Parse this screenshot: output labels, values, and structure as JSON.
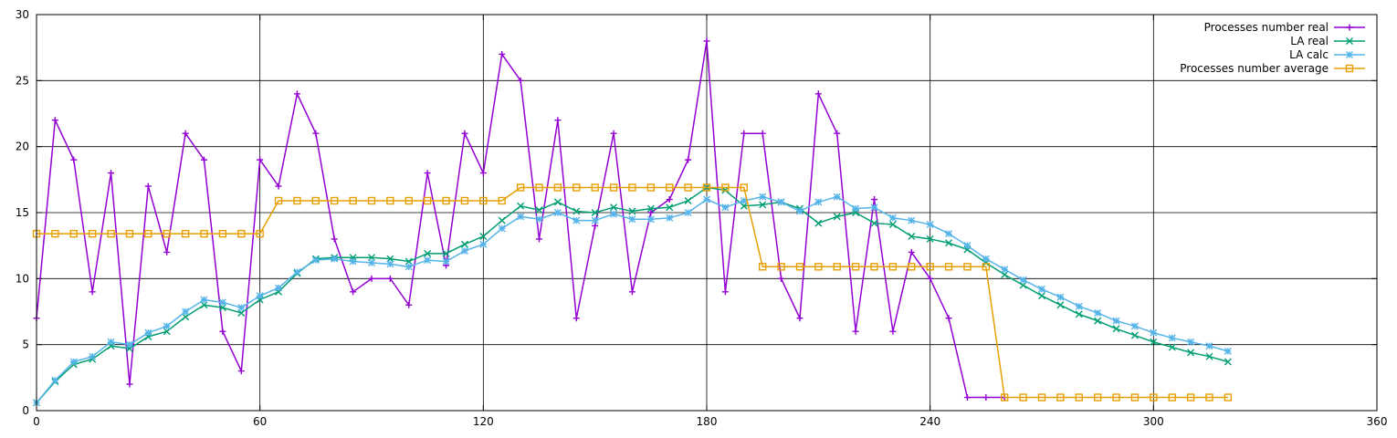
{
  "chart_data": {
    "type": "line",
    "title": "",
    "xlabel": "",
    "ylabel": "",
    "xlim": [
      0,
      360
    ],
    "ylim": [
      0,
      30
    ],
    "x_ticks": [
      0,
      60,
      120,
      180,
      240,
      300,
      360
    ],
    "y_ticks": [
      0,
      5,
      10,
      15,
      20,
      25,
      30
    ],
    "grid": true,
    "legend_position": "top-right",
    "series": [
      {
        "name": "Processes number real",
        "color": "#9400d3",
        "marker": "plus",
        "points": [
          [
            0,
            7
          ],
          [
            5,
            22
          ],
          [
            10,
            19
          ],
          [
            15,
            9
          ],
          [
            20,
            18
          ],
          [
            25,
            2
          ],
          [
            30,
            17
          ],
          [
            35,
            12
          ],
          [
            40,
            21
          ],
          [
            45,
            19
          ],
          [
            50,
            6
          ],
          [
            55,
            3
          ],
          [
            60,
            19
          ],
          [
            65,
            17
          ],
          [
            70,
            24
          ],
          [
            75,
            21
          ],
          [
            80,
            13
          ],
          [
            85,
            9
          ],
          [
            90,
            10
          ],
          [
            95,
            10
          ],
          [
            100,
            8
          ],
          [
            105,
            18
          ],
          [
            110,
            11
          ],
          [
            115,
            21
          ],
          [
            120,
            18
          ],
          [
            125,
            27
          ],
          [
            130,
            25
          ],
          [
            135,
            13
          ],
          [
            140,
            22
          ],
          [
            145,
            7
          ],
          [
            150,
            14
          ],
          [
            155,
            21
          ],
          [
            160,
            9
          ],
          [
            165,
            15
          ],
          [
            170,
            16
          ],
          [
            175,
            19
          ],
          [
            180,
            28
          ],
          [
            185,
            9
          ],
          [
            190,
            21
          ],
          [
            195,
            21
          ],
          [
            200,
            10
          ],
          [
            205,
            7
          ],
          [
            210,
            24
          ],
          [
            215,
            21
          ],
          [
            220,
            6
          ],
          [
            225,
            16
          ],
          [
            230,
            6
          ],
          [
            235,
            12
          ],
          [
            240,
            10
          ],
          [
            245,
            7
          ],
          [
            250,
            1
          ],
          [
            255,
            1
          ],
          [
            260,
            1
          ]
        ]
      },
      {
        "name": "LA real",
        "color": "#009e73",
        "marker": "cross",
        "points": [
          [
            0,
            0.6
          ],
          [
            5,
            2.2
          ],
          [
            10,
            3.5
          ],
          [
            15,
            3.9
          ],
          [
            20,
            4.9
          ],
          [
            25,
            4.7
          ],
          [
            30,
            5.6
          ],
          [
            35,
            6.0
          ],
          [
            40,
            7.1
          ],
          [
            45,
            8.0
          ],
          [
            50,
            7.8
          ],
          [
            55,
            7.4
          ],
          [
            60,
            8.4
          ],
          [
            65,
            9.0
          ],
          [
            70,
            10.4
          ],
          [
            75,
            11.5
          ],
          [
            80,
            11.6
          ],
          [
            85,
            11.6
          ],
          [
            90,
            11.6
          ],
          [
            95,
            11.5
          ],
          [
            100,
            11.3
          ],
          [
            105,
            11.9
          ],
          [
            110,
            11.9
          ],
          [
            115,
            12.6
          ],
          [
            120,
            13.2
          ],
          [
            125,
            14.4
          ],
          [
            130,
            15.5
          ],
          [
            135,
            15.2
          ],
          [
            140,
            15.8
          ],
          [
            145,
            15.1
          ],
          [
            150,
            15.0
          ],
          [
            155,
            15.4
          ],
          [
            160,
            15.1
          ],
          [
            165,
            15.3
          ],
          [
            170,
            15.4
          ],
          [
            175,
            15.9
          ],
          [
            180,
            16.9
          ],
          [
            185,
            16.7
          ],
          [
            190,
            15.5
          ],
          [
            195,
            15.6
          ],
          [
            200,
            15.8
          ],
          [
            205,
            15.3
          ],
          [
            210,
            14.2
          ],
          [
            215,
            14.7
          ],
          [
            220,
            15.0
          ],
          [
            225,
            14.2
          ],
          [
            230,
            14.1
          ],
          [
            235,
            13.2
          ],
          [
            240,
            13.0
          ],
          [
            245,
            12.7
          ],
          [
            250,
            12.2
          ],
          [
            255,
            11.2
          ],
          [
            260,
            10.3
          ],
          [
            265,
            9.5
          ],
          [
            270,
            8.7
          ],
          [
            275,
            8.0
          ],
          [
            280,
            7.3
          ],
          [
            285,
            6.8
          ],
          [
            290,
            6.2
          ],
          [
            295,
            5.7
          ],
          [
            300,
            5.2
          ],
          [
            305,
            4.8
          ],
          [
            310,
            4.4
          ],
          [
            315,
            4.1
          ],
          [
            320,
            3.7
          ]
        ]
      },
      {
        "name": "LA calc",
        "color": "#56b4e9",
        "marker": "star",
        "points": [
          [
            0,
            0.6
          ],
          [
            5,
            2.3
          ],
          [
            10,
            3.7
          ],
          [
            15,
            4.1
          ],
          [
            20,
            5.2
          ],
          [
            25,
            5.0
          ],
          [
            30,
            5.9
          ],
          [
            35,
            6.4
          ],
          [
            40,
            7.5
          ],
          [
            45,
            8.4
          ],
          [
            50,
            8.2
          ],
          [
            55,
            7.8
          ],
          [
            60,
            8.7
          ],
          [
            65,
            9.3
          ],
          [
            70,
            10.5
          ],
          [
            75,
            11.4
          ],
          [
            80,
            11.5
          ],
          [
            85,
            11.3
          ],
          [
            90,
            11.2
          ],
          [
            95,
            11.1
          ],
          [
            100,
            10.9
          ],
          [
            105,
            11.4
          ],
          [
            110,
            11.3
          ],
          [
            115,
            12.1
          ],
          [
            120,
            12.6
          ],
          [
            125,
            13.8
          ],
          [
            130,
            14.7
          ],
          [
            135,
            14.5
          ],
          [
            140,
            15.0
          ],
          [
            145,
            14.4
          ],
          [
            150,
            14.4
          ],
          [
            155,
            14.9
          ],
          [
            160,
            14.5
          ],
          [
            165,
            14.5
          ],
          [
            170,
            14.6
          ],
          [
            175,
            15.0
          ],
          [
            180,
            16.0
          ],
          [
            185,
            15.4
          ],
          [
            190,
            15.9
          ],
          [
            195,
            16.2
          ],
          [
            200,
            15.8
          ],
          [
            205,
            15.1
          ],
          [
            210,
            15.8
          ],
          [
            215,
            16.2
          ],
          [
            220,
            15.3
          ],
          [
            225,
            15.4
          ],
          [
            230,
            14.6
          ],
          [
            235,
            14.4
          ],
          [
            240,
            14.1
          ],
          [
            245,
            13.4
          ],
          [
            250,
            12.5
          ],
          [
            255,
            11.5
          ],
          [
            260,
            10.7
          ],
          [
            265,
            9.9
          ],
          [
            270,
            9.2
          ],
          [
            275,
            8.6
          ],
          [
            280,
            7.9
          ],
          [
            285,
            7.4
          ],
          [
            290,
            6.8
          ],
          [
            295,
            6.4
          ],
          [
            300,
            5.9
          ],
          [
            305,
            5.5
          ],
          [
            310,
            5.2
          ],
          [
            315,
            4.9
          ],
          [
            320,
            4.5
          ]
        ]
      },
      {
        "name": "Processes number average",
        "color": "#e69f00",
        "marker": "square",
        "points": [
          [
            0,
            13.4
          ],
          [
            5,
            13.4
          ],
          [
            10,
            13.4
          ],
          [
            15,
            13.4
          ],
          [
            20,
            13.4
          ],
          [
            25,
            13.4
          ],
          [
            30,
            13.4
          ],
          [
            35,
            13.4
          ],
          [
            40,
            13.4
          ],
          [
            45,
            13.4
          ],
          [
            50,
            13.4
          ],
          [
            55,
            13.4
          ],
          [
            60,
            13.4
          ],
          [
            65,
            15.9
          ],
          [
            70,
            15.9
          ],
          [
            75,
            15.9
          ],
          [
            80,
            15.9
          ],
          [
            85,
            15.9
          ],
          [
            90,
            15.9
          ],
          [
            95,
            15.9
          ],
          [
            100,
            15.9
          ],
          [
            105,
            15.9
          ],
          [
            110,
            15.9
          ],
          [
            115,
            15.9
          ],
          [
            120,
            15.9
          ],
          [
            125,
            15.9
          ],
          [
            130,
            16.9
          ],
          [
            135,
            16.9
          ],
          [
            140,
            16.9
          ],
          [
            145,
            16.9
          ],
          [
            150,
            16.9
          ],
          [
            155,
            16.9
          ],
          [
            160,
            16.9
          ],
          [
            165,
            16.9
          ],
          [
            170,
            16.9
          ],
          [
            175,
            16.9
          ],
          [
            180,
            16.9
          ],
          [
            185,
            16.9
          ],
          [
            190,
            16.9
          ],
          [
            195,
            10.9
          ],
          [
            200,
            10.9
          ],
          [
            205,
            10.9
          ],
          [
            210,
            10.9
          ],
          [
            215,
            10.9
          ],
          [
            220,
            10.9
          ],
          [
            225,
            10.9
          ],
          [
            230,
            10.9
          ],
          [
            235,
            10.9
          ],
          [
            240,
            10.9
          ],
          [
            245,
            10.9
          ],
          [
            250,
            10.9
          ],
          [
            255,
            10.9
          ],
          [
            260,
            1
          ],
          [
            265,
            1
          ],
          [
            270,
            1
          ],
          [
            275,
            1
          ],
          [
            280,
            1
          ],
          [
            285,
            1
          ],
          [
            290,
            1
          ],
          [
            295,
            1
          ],
          [
            300,
            1
          ],
          [
            305,
            1
          ],
          [
            310,
            1
          ],
          [
            315,
            1
          ],
          [
            320,
            1
          ]
        ]
      }
    ]
  }
}
